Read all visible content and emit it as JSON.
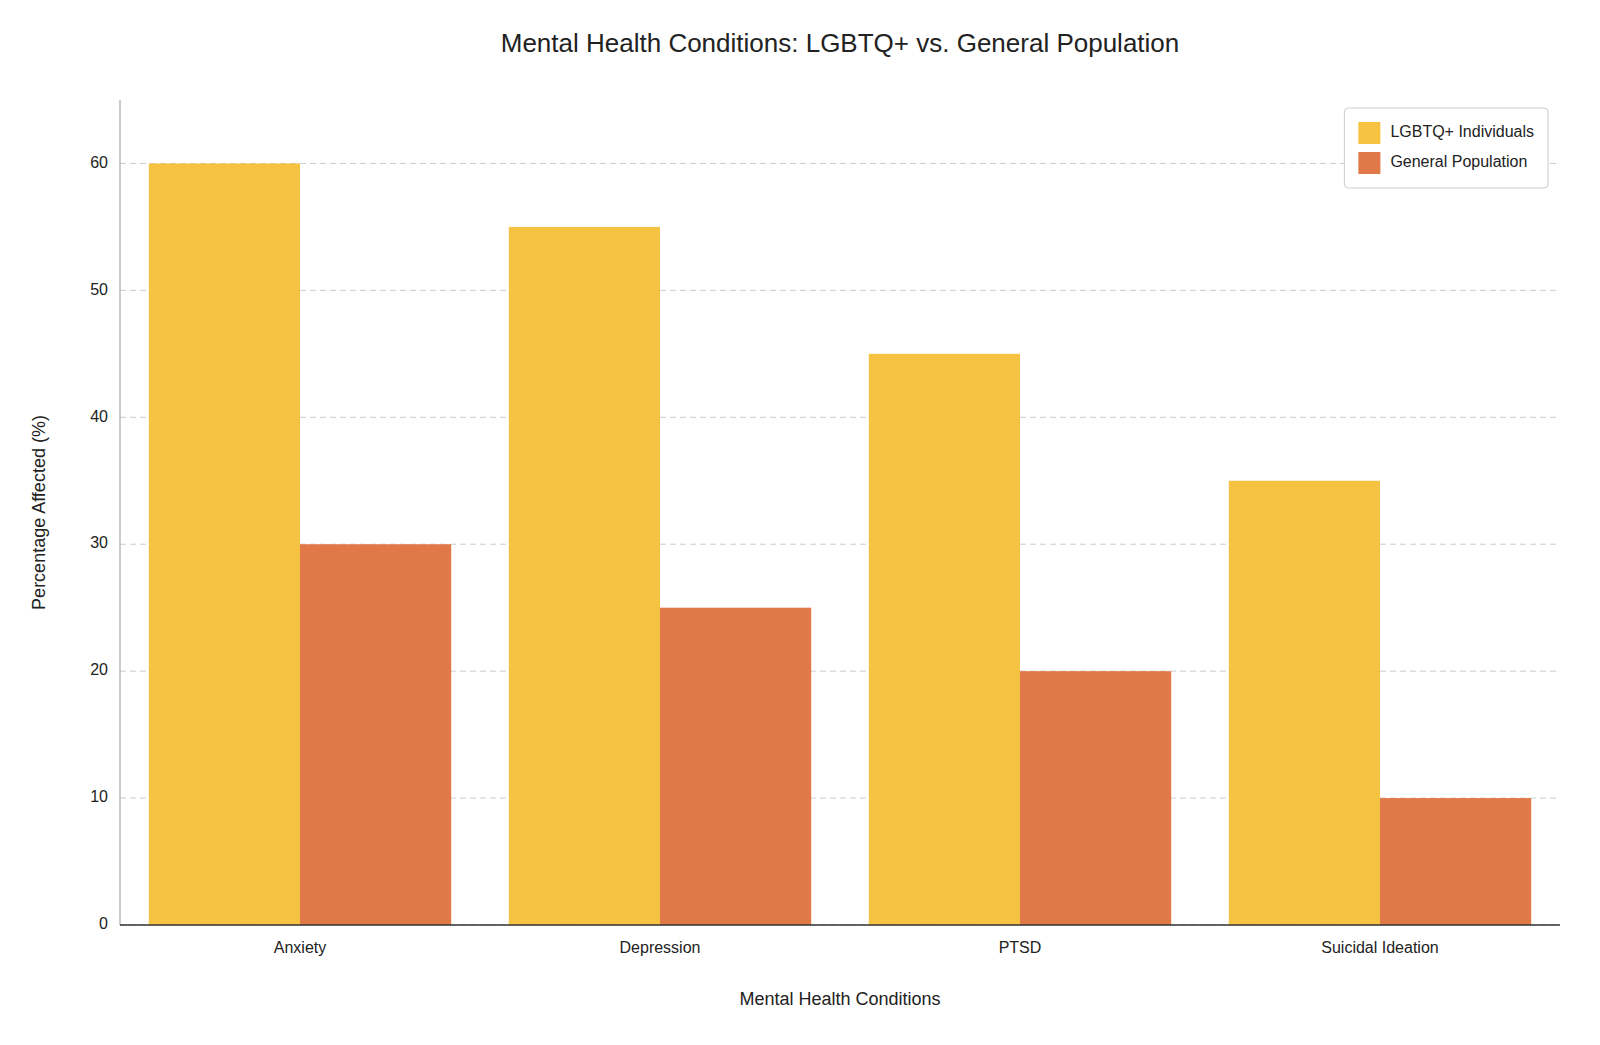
{
  "chart_data": {
    "type": "bar",
    "title": "Mental Health Conditions: LGBTQ+ vs. General Population",
    "xlabel": "Mental Health Conditions",
    "ylabel": "Percentage Affected (%)",
    "categories": [
      "Anxiety",
      "Depression",
      "PTSD",
      "Suicidal Ideation"
    ],
    "series": [
      {
        "name": "LGBTQ+ Individuals",
        "color": "#F5C242",
        "values": [
          60,
          55,
          45,
          35
        ]
      },
      {
        "name": "General Population",
        "color": "#E07848",
        "values": [
          30,
          25,
          20,
          10
        ]
      }
    ],
    "ylim": [
      0,
      65
    ],
    "yticks": [
      0,
      10,
      20,
      30,
      40,
      50,
      60
    ],
    "grid": true,
    "legend": "upper right"
  }
}
